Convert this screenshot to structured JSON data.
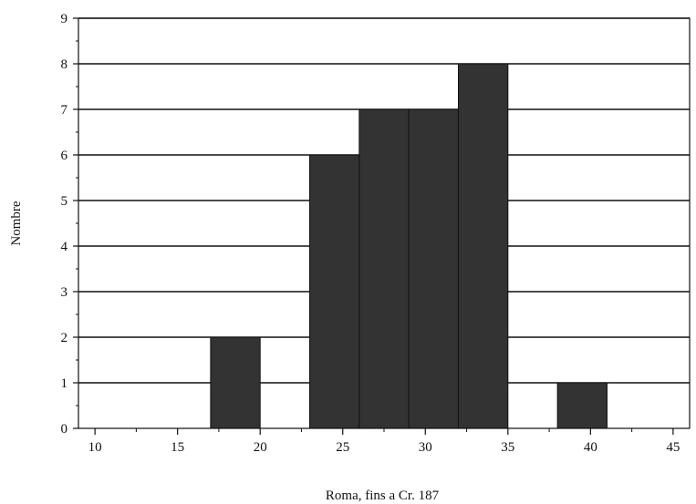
{
  "chart_data": {
    "type": "bar",
    "subtype": "histogram",
    "title": "",
    "xlabel": "Roma, fins a Cr. 187",
    "ylabel": "Nombre",
    "xlim": [
      9,
      46
    ],
    "ylim": [
      0,
      9
    ],
    "x_ticks": [
      10,
      15,
      20,
      25,
      30,
      35,
      40,
      45
    ],
    "y_ticks": [
      0,
      1,
      2,
      3,
      4,
      5,
      6,
      7,
      8,
      9
    ],
    "grid": "horizontal",
    "bin_width": 3,
    "bins": [
      {
        "start": 17,
        "end": 20,
        "value": 2
      },
      {
        "start": 23,
        "end": 26,
        "value": 6
      },
      {
        "start": 26,
        "end": 29,
        "value": 7
      },
      {
        "start": 29,
        "end": 32,
        "value": 7
      },
      {
        "start": 32,
        "end": 35,
        "value": 8
      },
      {
        "start": 38,
        "end": 41,
        "value": 1
      }
    ],
    "colors": {
      "bar": "#333333",
      "bar_edge": "#111111",
      "grid": "#111111",
      "axis": "#111111"
    }
  }
}
